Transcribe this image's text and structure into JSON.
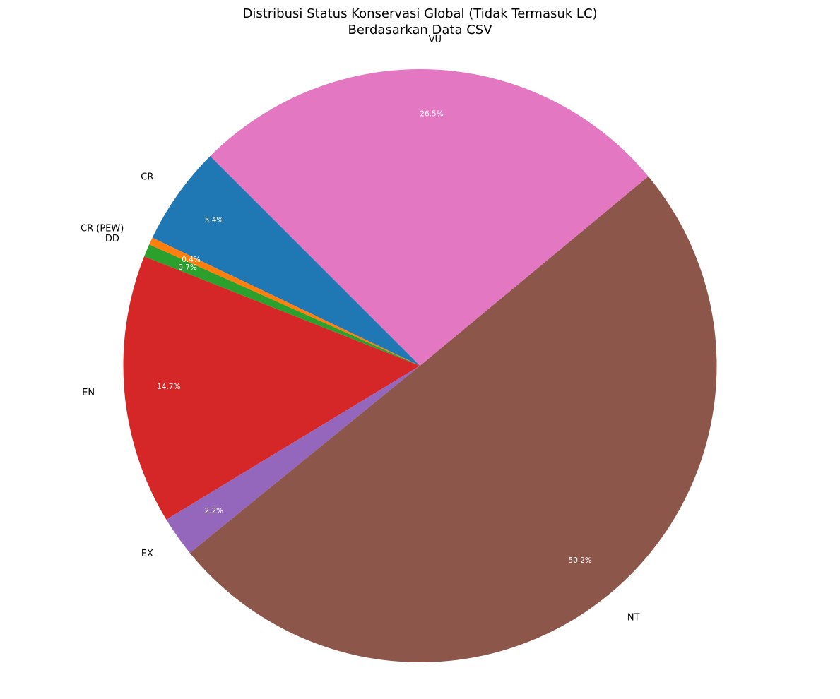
{
  "chart_data": {
    "type": "pie",
    "title": "Distribusi Status Konservasi Global (Tidak Termasuk LC)",
    "subtitle": "Berdasarkan Data CSV",
    "start_angle_deg": 135,
    "direction": "counterclockwise",
    "slices": [
      {
        "label": "CR",
        "percent": 5.4,
        "percent_label": "5.4%",
        "color": "#1f77b4"
      },
      {
        "label": "CR (PEW)",
        "percent": 0.4,
        "percent_label": "0.4%",
        "color": "#ff7f0e"
      },
      {
        "label": "DD",
        "percent": 0.7,
        "percent_label": "0.7%",
        "color": "#2ca02c"
      },
      {
        "label": "EN",
        "percent": 14.7,
        "percent_label": "14.7%",
        "color": "#d62728"
      },
      {
        "label": "EX",
        "percent": 2.2,
        "percent_label": "2.2%",
        "color": "#9467bd"
      },
      {
        "label": "NT",
        "percent": 50.2,
        "percent_label": "50.2%",
        "color": "#8c564b"
      },
      {
        "label": "VU",
        "percent": 26.5,
        "percent_label": "26.5%",
        "color": "#e377c2"
      }
    ]
  }
}
